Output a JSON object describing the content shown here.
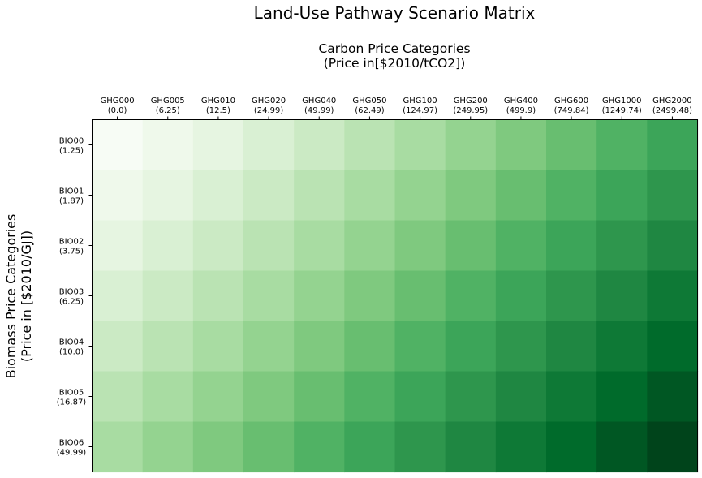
{
  "chart_data": {
    "type": "heatmap",
    "title": "Land-Use Pathway Scenario Matrix",
    "xlabel_lines": [
      "Carbon Price Categories",
      "(Price in[$2010/tCO2])"
    ],
    "ylabel_lines": [
      "Biomass Price Categories",
      "(Price in [$2010/GJ])"
    ],
    "x_categories": [
      {
        "name": "GHG000",
        "value": "(0.0)"
      },
      {
        "name": "GHG005",
        "value": "(6.25)"
      },
      {
        "name": "GHG010",
        "value": "(12.5)"
      },
      {
        "name": "GHG020",
        "value": "(24.99)"
      },
      {
        "name": "GHG040",
        "value": "(49.99)"
      },
      {
        "name": "GHG050",
        "value": "(62.49)"
      },
      {
        "name": "GHG100",
        "value": "(124.97)"
      },
      {
        "name": "GHG200",
        "value": "(249.95)"
      },
      {
        "name": "GHG400",
        "value": "(499.9)"
      },
      {
        "name": "GHG600",
        "value": "(749.84)"
      },
      {
        "name": "GHG1000",
        "value": "(1249.74)"
      },
      {
        "name": "GHG2000",
        "value": "(2499.48)"
      }
    ],
    "y_categories": [
      {
        "name": "BIO00",
        "value": "(1.25)"
      },
      {
        "name": "BIO01",
        "value": "(1.87)"
      },
      {
        "name": "BIO02",
        "value": "(3.75)"
      },
      {
        "name": "BIO03",
        "value": "(6.25)"
      },
      {
        "name": "BIO04",
        "value": "(10.0)"
      },
      {
        "name": "BIO05",
        "value": "(16.87)"
      },
      {
        "name": "BIO06",
        "value": "(49.99)"
      }
    ],
    "colormap": "Greens",
    "x_axis_position": "top",
    "grid": false
  }
}
